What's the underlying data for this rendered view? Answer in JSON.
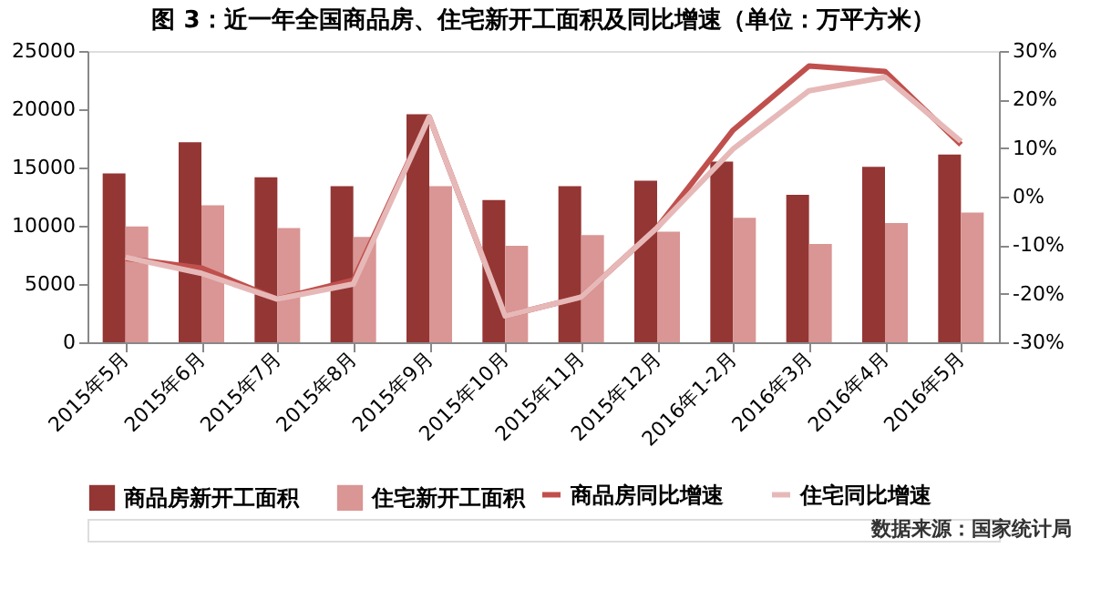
{
  "chart_data": {
    "type": "bar",
    "title": "图 3：近一年全国商品房、住宅新开工面积及同比增速（单位：万平方米）",
    "categories": [
      "2015年5月",
      "2015年6月",
      "2015年7月",
      "2015年8月",
      "2015年9月",
      "2015年10月",
      "2015年11月",
      "2015年12月",
      "2016年1-2月",
      "2016年3月",
      "2016年4月",
      "2016年5月"
    ],
    "series": [
      {
        "name": "商品房新开工面积",
        "type": "bar",
        "color": "#943634",
        "values": [
          14500,
          17170,
          14160,
          13400,
          19580,
          12200,
          13400,
          13860,
          15510,
          12650,
          15060,
          16110
        ]
      },
      {
        "name": "住宅新开工面积",
        "type": "bar",
        "color": "#d99694",
        "values": [
          9940,
          11750,
          9800,
          9040,
          13400,
          8280,
          9190,
          9490,
          10690,
          8430,
          10240,
          11140
        ]
      },
      {
        "name": "商品房同比增速",
        "type": "line",
        "axis": "y2",
        "color": "#c0504d",
        "values": [
          -12.7,
          -14.7,
          -21.1,
          -17.2,
          16.4,
          -24.6,
          -20.7,
          -6.4,
          13.7,
          26.9,
          25.8,
          10.7
        ]
      },
      {
        "name": "住宅同比增速",
        "type": "line",
        "axis": "y2",
        "color": "#e6b9b8",
        "values": [
          -12.5,
          -15.8,
          -21.1,
          -18.0,
          16.4,
          -24.6,
          -20.7,
          -6.4,
          9.8,
          21.8,
          24.6,
          11.4
        ]
      }
    ],
    "ylim": [
      0,
      25000
    ],
    "yticks": [
      0,
      5000,
      10000,
      15000,
      20000,
      25000
    ],
    "y2lim": [
      -30,
      30
    ],
    "y2ticks": [
      {
        "value": -30,
        "label": "-30%"
      },
      {
        "value": -20,
        "label": "-20%"
      },
      {
        "value": -10,
        "label": "-10%"
      },
      {
        "value": 0,
        "label": "0%"
      },
      {
        "value": 10,
        "label": "10%"
      },
      {
        "value": 20,
        "label": "20%"
      },
      {
        "value": 30,
        "label": "30%"
      }
    ],
    "grid": false,
    "legend": "bottom",
    "annotations": [
      "数据来源：国家统计局"
    ]
  }
}
